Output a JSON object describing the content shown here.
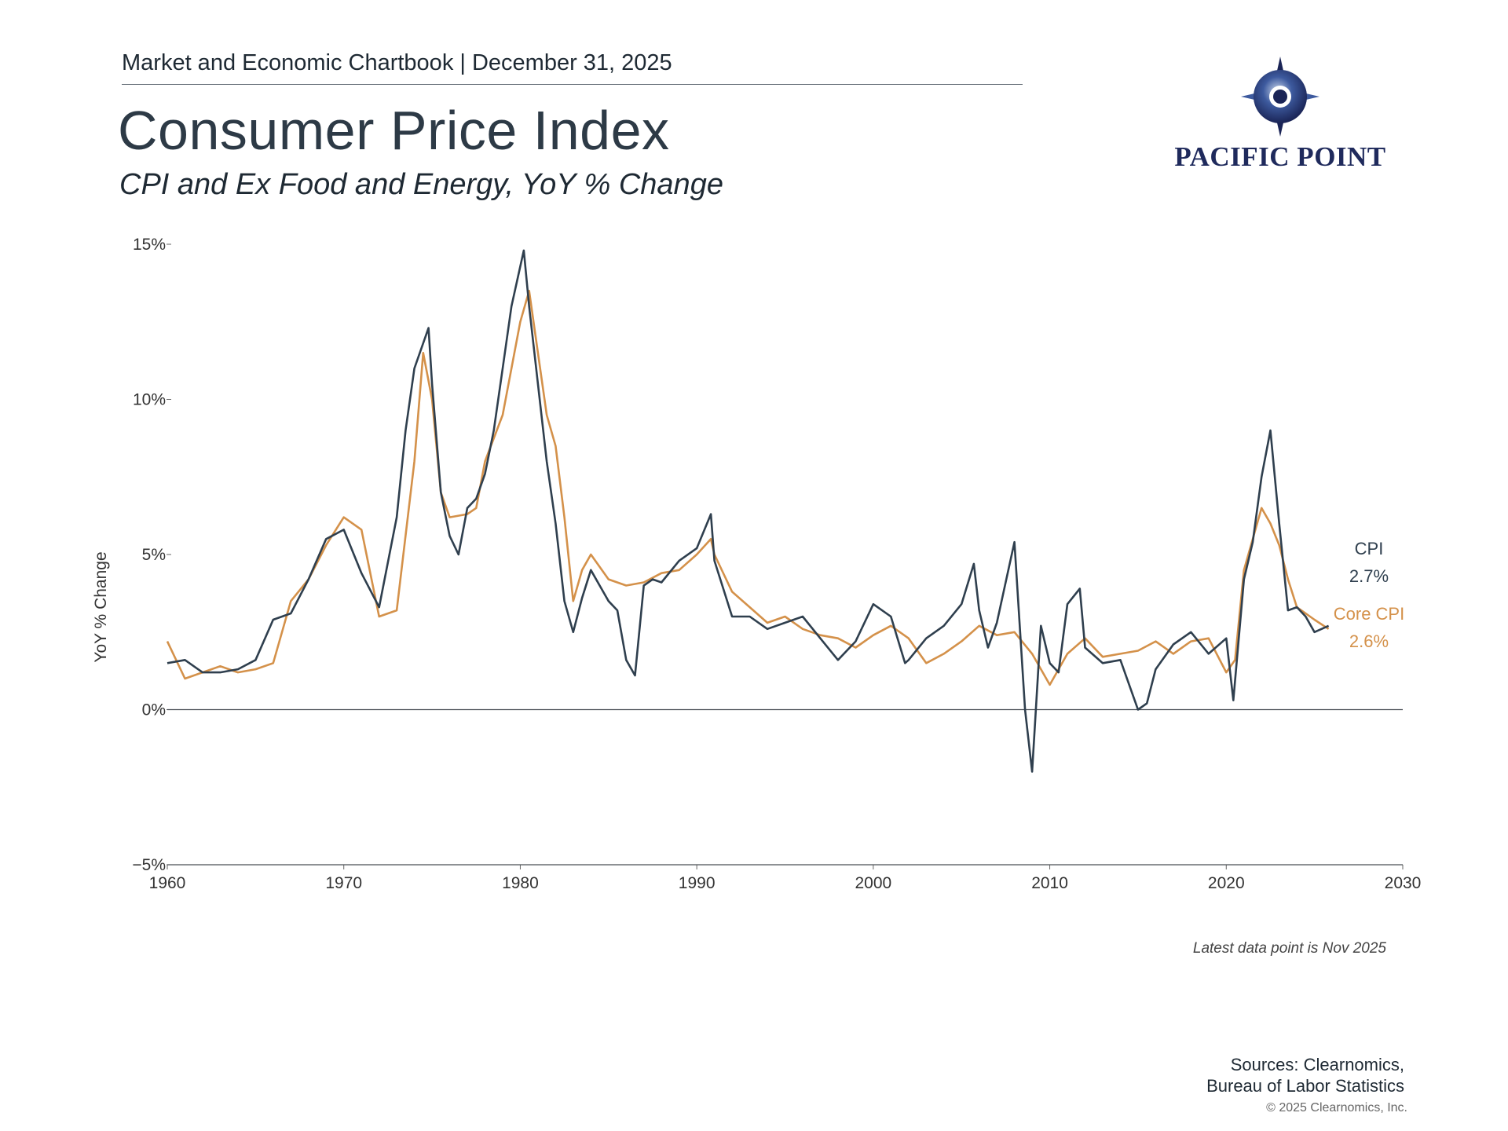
{
  "header": {
    "chartbook": "Market and Economic Chartbook | December 31, 2025",
    "title": "Consumer Price Index",
    "subtitle": "CPI and Ex Food and Energy, YoY % Change"
  },
  "brand": {
    "name": "PACIFIC POINT",
    "icon": "compass-star-logo",
    "color": "#1f2a5c"
  },
  "colors": {
    "cpi": "#2f3f4e",
    "core_cpi": "#d4914a",
    "axis": "#333333"
  },
  "footer": {
    "latest_note": "Latest data point is Nov 2025",
    "sources_line1": "Sources: Clearnomics,",
    "sources_line2": "Bureau of Labor Statistics",
    "copyright": "© 2025 Clearnomics, Inc."
  },
  "chart_data": {
    "type": "line",
    "title": "Consumer Price Index",
    "subtitle": "CPI and Ex Food and Energy, YoY % Change",
    "xlabel": "",
    "ylabel": "YoY % Change",
    "xlim": [
      1960,
      2030
    ],
    "ylim": [
      -5,
      15
    ],
    "x_ticks": [
      "1960",
      "1970",
      "1980",
      "1990",
      "2000",
      "2010",
      "2020",
      "2030"
    ],
    "y_ticks": [
      "15%",
      "10%",
      "5%",
      "0%",
      "−5%"
    ],
    "y_tick_values": [
      15,
      10,
      5,
      0,
      -5
    ],
    "grid": false,
    "zero_line": true,
    "legend": "end-of-line labels",
    "series": [
      {
        "name": "CPI",
        "end_label": "CPI",
        "end_value_label": "2.7%",
        "color": "#2f3f4e",
        "x": [
          1960,
          1961,
          1962,
          1963,
          1964,
          1965,
          1966,
          1967,
          1968,
          1969,
          1970,
          1971,
          1972,
          1973,
          1973.5,
          1974,
          1974.8,
          1975,
          1975.5,
          1976,
          1976.5,
          1977,
          1977.5,
          1978,
          1978.5,
          1979,
          1979.5,
          1980.2,
          1980.5,
          1981,
          1981.5,
          1982,
          1982.5,
          1983,
          1983.5,
          1984,
          1984.5,
          1985,
          1985.5,
          1986,
          1986.5,
          1987,
          1987.5,
          1988,
          1989,
          1990,
          1990.8,
          1991,
          1991.5,
          1992,
          1993,
          1994,
          1995,
          1996,
          1997,
          1998,
          1999,
          2000,
          2001,
          2001.8,
          2002,
          2003,
          2004,
          2005,
          2005.7,
          2006,
          2006.5,
          2007,
          2007.5,
          2008,
          2008.6,
          2009,
          2009.5,
          2010,
          2010.5,
          2011,
          2011.7,
          2012,
          2013,
          2014,
          2015,
          2015.5,
          2016,
          2017,
          2018,
          2019,
          2020,
          2020.4,
          2021,
          2021.5,
          2022,
          2022.5,
          2023,
          2023.5,
          2024,
          2024.5,
          2025,
          2025.8
        ],
        "values": [
          1.5,
          1.6,
          1.2,
          1.2,
          1.3,
          1.6,
          2.9,
          3.1,
          4.2,
          5.5,
          5.8,
          4.4,
          3.3,
          6.2,
          9.0,
          11.0,
          12.3,
          10.5,
          7.0,
          5.6,
          5.0,
          6.5,
          6.8,
          7.6,
          9.0,
          11.0,
          13.0,
          14.8,
          13.0,
          10.5,
          8.0,
          6.0,
          3.5,
          2.5,
          3.6,
          4.5,
          4.0,
          3.5,
          3.2,
          1.6,
          1.1,
          4.0,
          4.2,
          4.1,
          4.8,
          5.2,
          6.3,
          4.8,
          3.9,
          3.0,
          3.0,
          2.6,
          2.8,
          3.0,
          2.3,
          1.6,
          2.2,
          3.4,
          3.0,
          1.5,
          1.6,
          2.3,
          2.7,
          3.4,
          4.7,
          3.2,
          2.0,
          2.8,
          4.1,
          5.4,
          0.0,
          -2.0,
          2.7,
          1.5,
          1.2,
          3.4,
          3.9,
          2.0,
          1.5,
          1.6,
          0.0,
          0.2,
          1.3,
          2.1,
          2.5,
          1.8,
          2.3,
          0.3,
          4.2,
          5.4,
          7.5,
          9.0,
          6.0,
          3.2,
          3.3,
          3.0,
          2.5,
          2.7
        ]
      },
      {
        "name": "Core CPI",
        "end_label": "Core CPI",
        "end_value_label": "2.6%",
        "color": "#d4914a",
        "x": [
          1960,
          1961,
          1962,
          1963,
          1964,
          1965,
          1966,
          1967,
          1968,
          1969,
          1970,
          1971,
          1972,
          1973,
          1974,
          1974.5,
          1975,
          1975.5,
          1976,
          1977,
          1977.5,
          1978,
          1979,
          1980,
          1980.5,
          1981,
          1981.5,
          1982,
          1982.5,
          1983,
          1983.5,
          1984,
          1985,
          1986,
          1987,
          1988,
          1989,
          1990,
          1990.8,
          1991,
          1992,
          1993,
          1994,
          1995,
          1996,
          1997,
          1998,
          1999,
          2000,
          2001,
          2002,
          2003,
          2004,
          2005,
          2006,
          2007,
          2008,
          2009,
          2010,
          2011,
          2012,
          2013,
          2014,
          2015,
          2016,
          2017,
          2018,
          2019,
          2020,
          2020.5,
          2021,
          2021.5,
          2022,
          2022.5,
          2023,
          2023.5,
          2024,
          2025,
          2025.8
        ],
        "values": [
          2.2,
          1.0,
          1.2,
          1.4,
          1.2,
          1.3,
          1.5,
          3.5,
          4.2,
          5.3,
          6.2,
          5.8,
          3.0,
          3.2,
          8.0,
          11.5,
          10.0,
          7.0,
          6.2,
          6.3,
          6.5,
          8.0,
          9.5,
          12.5,
          13.5,
          11.5,
          9.5,
          8.5,
          6.2,
          3.5,
          4.5,
          5.0,
          4.2,
          4.0,
          4.1,
          4.4,
          4.5,
          5.0,
          5.5,
          5.0,
          3.8,
          3.3,
          2.8,
          3.0,
          2.6,
          2.4,
          2.3,
          2.0,
          2.4,
          2.7,
          2.3,
          1.5,
          1.8,
          2.2,
          2.7,
          2.4,
          2.5,
          1.8,
          0.8,
          1.8,
          2.3,
          1.7,
          1.8,
          1.9,
          2.2,
          1.8,
          2.2,
          2.3,
          1.2,
          1.6,
          4.5,
          5.5,
          6.5,
          6.0,
          5.3,
          4.2,
          3.3,
          2.9,
          2.6
        ]
      }
    ]
  }
}
